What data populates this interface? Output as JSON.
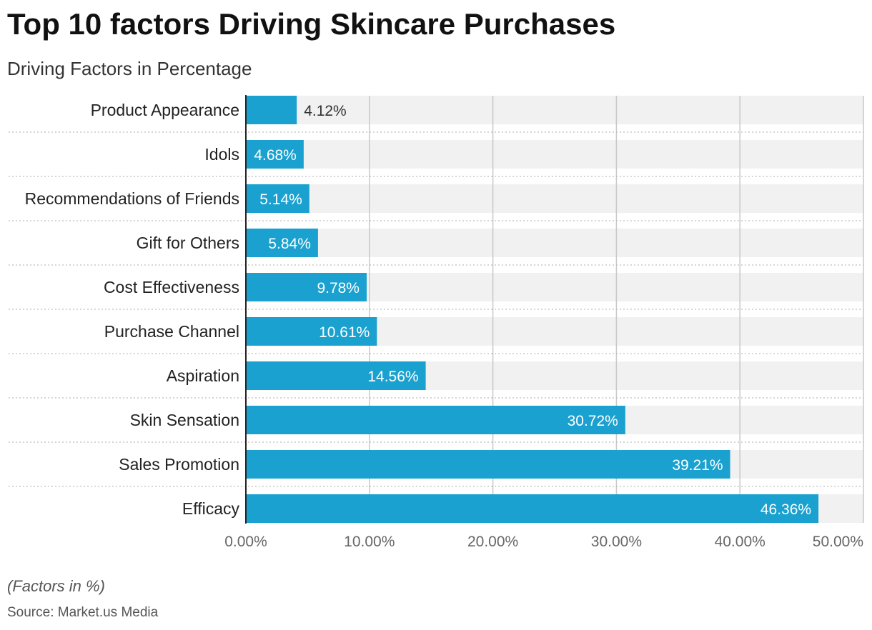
{
  "header": {
    "title": "Top 10 factors Driving Skincare Purchases",
    "subtitle": "Driving Factors in Percentage"
  },
  "footer": {
    "note": "(Factors in %)",
    "source": "Source: Market.us Media"
  },
  "colors": {
    "bar": "#1aa1cf",
    "track": "#f1f1f1",
    "grid": "#c8c8c8",
    "label_inside": "#ffffff",
    "label_outside": "#333333"
  },
  "chart_data": {
    "type": "bar",
    "orientation": "horizontal",
    "title": "Top 10 factors Driving Skincare Purchases",
    "subtitle": "Driving Factors in Percentage",
    "categories": [
      "Product Appearance",
      "Idols",
      "Recommendations of Friends",
      "Gift for Others",
      "Cost Effectiveness",
      "Purchase Channel",
      "Aspiration",
      "Skin Sensation",
      "Sales Promotion",
      "Efficacy"
    ],
    "values": [
      4.12,
      4.68,
      5.14,
      5.84,
      9.78,
      10.61,
      14.56,
      30.72,
      39.21,
      46.36
    ],
    "value_labels": [
      "4.12%",
      "4.68%",
      "5.14%",
      "5.84%",
      "9.78%",
      "10.61%",
      "14.56%",
      "30.72%",
      "39.21%",
      "46.36%"
    ],
    "xlim": [
      0,
      50
    ],
    "x_ticks": [
      0,
      10,
      20,
      30,
      40,
      50
    ],
    "x_tick_labels": [
      "0.00%",
      "10.00%",
      "20.00%",
      "30.00%",
      "40.00%",
      "50.00%"
    ],
    "grid": true
  }
}
